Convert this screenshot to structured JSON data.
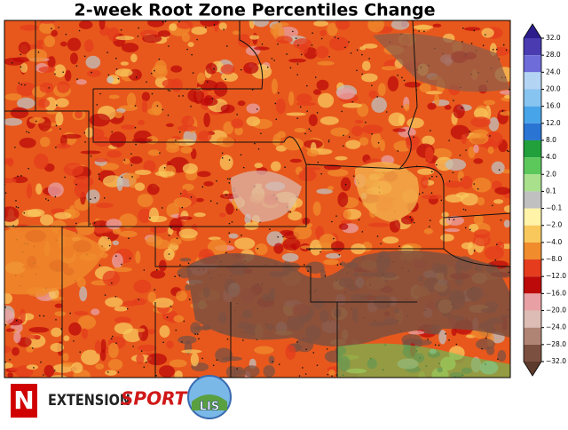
{
  "title": "2-week Root Zone Percentiles Change",
  "colorbar": {
    "ticks": [
      {
        "value": 32,
        "label": "32.0"
      },
      {
        "value": 28,
        "label": "28.0"
      },
      {
        "value": 24,
        "label": "24.0"
      },
      {
        "value": 20,
        "label": "20.0"
      },
      {
        "value": 16,
        "label": "16.0"
      },
      {
        "value": 12,
        "label": "12.0"
      },
      {
        "value": 8,
        "label": "8.0"
      },
      {
        "value": 4,
        "label": "4.0"
      },
      {
        "value": 2,
        "label": "2.0"
      },
      {
        "value": 0.1,
        "label": "0.1"
      },
      {
        "value": -0.1,
        "label": "−0.1"
      },
      {
        "value": -2,
        "label": "−2.0"
      },
      {
        "value": -4,
        "label": "−4.0"
      },
      {
        "value": -8,
        "label": "−8.0"
      },
      {
        "value": -12,
        "label": "−12.0"
      },
      {
        "value": -16,
        "label": "−16.0"
      },
      {
        "value": -20,
        "label": "−20.0"
      },
      {
        "value": -24,
        "label": "−24.0"
      },
      {
        "value": -28,
        "label": "−28.0"
      },
      {
        "value": -32,
        "label": "−32.0"
      }
    ],
    "colors": [
      "#4a3cb0",
      "#6e6cd8",
      "#b4d4f4",
      "#88c4f0",
      "#48a4e8",
      "#2a74d4",
      "#22a03c",
      "#5cc85c",
      "#a8e08c",
      "#c0c0c0",
      "#fff3a8",
      "#f8c85c",
      "#f08c2c",
      "#e43c1c",
      "#bc0a0a",
      "#e8a0a4",
      "#dcbcb4",
      "#b08474",
      "#7c5040"
    ],
    "extend_colors": [
      "#2c1c8c",
      "#5c3a2c"
    ]
  },
  "logos": {
    "n": "N",
    "extension": "EXTENSION",
    "sport": "SPORT",
    "lis": "LIS"
  }
}
